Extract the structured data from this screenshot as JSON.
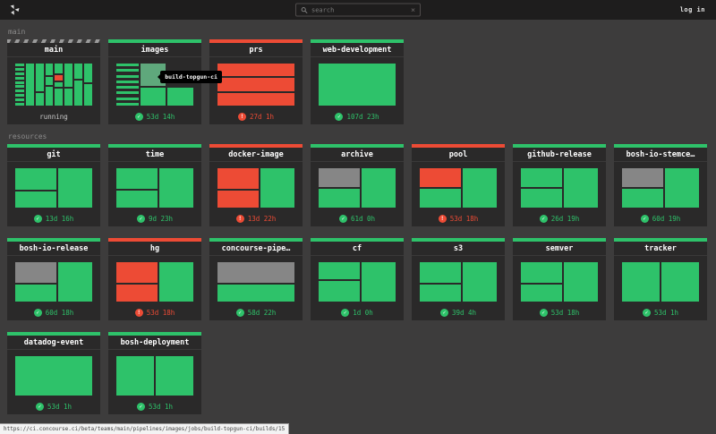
{
  "nav": {
    "search_placeholder": "search",
    "login_label": "log in"
  },
  "colors": {
    "green": "#2ec26a",
    "red": "#ed4b35",
    "gray": "#868686",
    "faded": "#5fa87c",
    "none": "transparent",
    "accent_striped": "running-stripes"
  },
  "statusbar": {
    "url": "https://ci.concourse.ci/beta/teams/main/pipelines/images/jobs/build-topgun-ci/builds/15"
  },
  "sections": [
    {
      "label": "main",
      "type": "pipelines",
      "cards": [
        {
          "title": "main",
          "bar": "striped",
          "status": {
            "icon": null,
            "text": "running",
            "color": "muted"
          },
          "preview": {
            "columns": [
              {
                "type": "stripes",
                "count": 10,
                "flex": 12,
                "color": "green"
              },
              {
                "flex": 11,
                "boxes": [
                  {
                    "color": "green",
                    "flex": 100
                  }
                ]
              },
              {
                "flex": 11,
                "boxes": [
                  {
                    "color": "green",
                    "flex": 68
                  },
                  {
                    "color": "green",
                    "flex": 30
                  }
                ]
              },
              {
                "flex": 11,
                "boxes": [
                  {
                    "color": "green",
                    "flex": 30
                  },
                  {
                    "color": "green",
                    "flex": 20
                  },
                  {
                    "color": "green",
                    "flex": 46
                  }
                ]
              },
              {
                "flex": 11,
                "boxes": [
                  {
                    "color": "green",
                    "flex": 26
                  },
                  {
                    "color": "red",
                    "flex": 13
                  },
                  {
                    "color": "green",
                    "flex": 12
                  },
                  {
                    "color": "green",
                    "flex": 43
                  }
                ]
              },
              {
                "flex": 11,
                "boxes": [
                  {
                    "color": "green",
                    "flex": 56
                  },
                  {
                    "color": "green",
                    "flex": 42
                  }
                ]
              },
              {
                "flex": 11,
                "boxes": [
                  {
                    "color": "green",
                    "flex": 36
                  },
                  {
                    "color": "green",
                    "flex": 62
                  }
                ]
              },
              {
                "flex": 11,
                "boxes": [
                  {
                    "color": "green",
                    "flex": 46
                  },
                  {
                    "color": "green",
                    "flex": 52
                  }
                ]
              }
            ]
          }
        },
        {
          "title": "images",
          "bar": "green",
          "tooltip": "build-topgun-ci",
          "status": {
            "icon": "check",
            "text": "53d 14h",
            "color": "green"
          },
          "preview": {
            "columns": [
              {
                "type": "stripes",
                "count": 8,
                "flex": 30,
                "color": "green"
              },
              {
                "flex": 35,
                "boxes": [
                  {
                    "color": "faded",
                    "flex": 55
                  },
                  {
                    "color": "green",
                    "flex": 45
                  }
                ]
              },
              {
                "flex": 35,
                "boxes": [
                  {
                    "color": "none",
                    "flex": 55
                  },
                  {
                    "color": "green",
                    "flex": 45
                  }
                ]
              }
            ]
          }
        },
        {
          "title": "prs",
          "bar": "red",
          "status": {
            "icon": "error",
            "text": "27d 1h",
            "color": "red"
          },
          "preview": {
            "columns": [
              {
                "flex": 100,
                "boxes": [
                  {
                    "color": "red",
                    "flex": 33
                  },
                  {
                    "color": "red",
                    "flex": 33
                  },
                  {
                    "color": "red",
                    "flex": 33
                  }
                ]
              }
            ]
          }
        },
        {
          "title": "web-development",
          "bar": "green",
          "status": {
            "icon": "check",
            "text": "107d 23h",
            "color": "green"
          },
          "preview": {
            "columns": [
              {
                "flex": 100,
                "boxes": [
                  {
                    "color": "green",
                    "flex": 100
                  }
                ]
              }
            ]
          }
        }
      ]
    },
    {
      "label": "resources",
      "type": "resources",
      "cards": [
        {
          "title": "git",
          "bar": "green",
          "status": {
            "icon": "check",
            "text": "13d 16h",
            "color": "green"
          },
          "preview": {
            "columns": [
              {
                "flex": 55,
                "boxes": [
                  {
                    "color": "green",
                    "flex": 58
                  },
                  {
                    "color": "green",
                    "flex": 42
                  }
                ]
              },
              {
                "flex": 45,
                "boxes": [
                  {
                    "color": "green",
                    "flex": 100
                  }
                ]
              }
            ]
          }
        },
        {
          "title": "time",
          "bar": "green",
          "status": {
            "icon": "check",
            "text": "9d 23h",
            "color": "green"
          },
          "preview": {
            "columns": [
              {
                "flex": 55,
                "boxes": [
                  {
                    "color": "green",
                    "flex": 55
                  },
                  {
                    "color": "green",
                    "flex": 45
                  }
                ]
              },
              {
                "flex": 45,
                "boxes": [
                  {
                    "color": "green",
                    "flex": 100
                  }
                ]
              }
            ]
          }
        },
        {
          "title": "docker-image",
          "bar": "red",
          "status": {
            "icon": "error",
            "text": "13d 22h",
            "color": "red"
          },
          "preview": {
            "columns": [
              {
                "flex": 55,
                "boxes": [
                  {
                    "color": "red",
                    "flex": 55
                  },
                  {
                    "color": "red",
                    "flex": 45
                  }
                ]
              },
              {
                "flex": 45,
                "boxes": [
                  {
                    "color": "green",
                    "flex": 100
                  }
                ]
              }
            ]
          }
        },
        {
          "title": "archive",
          "bar": "green",
          "status": {
            "icon": "check",
            "text": "61d 0h",
            "color": "green"
          },
          "preview": {
            "columns": [
              {
                "flex": 55,
                "boxes": [
                  {
                    "color": "gray",
                    "flex": 50
                  },
                  {
                    "color": "green",
                    "flex": 50
                  }
                ]
              },
              {
                "flex": 45,
                "boxes": [
                  {
                    "color": "green",
                    "flex": 100
                  }
                ]
              }
            ]
          }
        },
        {
          "title": "pool",
          "bar": "red",
          "status": {
            "icon": "error",
            "text": "53d 18h",
            "color": "red"
          },
          "preview": {
            "columns": [
              {
                "flex": 55,
                "boxes": [
                  {
                    "color": "red",
                    "flex": 50
                  },
                  {
                    "color": "green",
                    "flex": 50
                  }
                ]
              },
              {
                "flex": 45,
                "boxes": [
                  {
                    "color": "green",
                    "flex": 100
                  }
                ]
              }
            ]
          }
        },
        {
          "title": "github-release",
          "bar": "green",
          "status": {
            "icon": "check",
            "text": "26d 19h",
            "color": "green"
          },
          "preview": {
            "columns": [
              {
                "flex": 55,
                "boxes": [
                  {
                    "color": "green",
                    "flex": 50
                  },
                  {
                    "color": "green",
                    "flex": 50
                  }
                ]
              },
              {
                "flex": 45,
                "boxes": [
                  {
                    "color": "green",
                    "flex": 100
                  }
                ]
              }
            ]
          }
        },
        {
          "title": "bosh-io-stemce…",
          "bar": "green",
          "status": {
            "icon": "check",
            "text": "60d 19h",
            "color": "green"
          },
          "preview": {
            "columns": [
              {
                "flex": 55,
                "boxes": [
                  {
                    "color": "gray",
                    "flex": 50
                  },
                  {
                    "color": "green",
                    "flex": 50
                  }
                ]
              },
              {
                "flex": 45,
                "boxes": [
                  {
                    "color": "green",
                    "flex": 100
                  }
                ]
              }
            ]
          }
        },
        {
          "title": "bosh-io-release",
          "bar": "green",
          "status": {
            "icon": "check",
            "text": "60d 18h",
            "color": "green"
          },
          "preview": {
            "columns": [
              {
                "flex": 55,
                "boxes": [
                  {
                    "color": "gray",
                    "flex": 55
                  },
                  {
                    "color": "green",
                    "flex": 45
                  }
                ]
              },
              {
                "flex": 45,
                "boxes": [
                  {
                    "color": "green",
                    "flex": 100
                  }
                ]
              }
            ]
          }
        },
        {
          "title": "hg",
          "bar": "red",
          "status": {
            "icon": "error",
            "text": "53d 18h",
            "color": "red"
          },
          "preview": {
            "columns": [
              {
                "flex": 55,
                "boxes": [
                  {
                    "color": "red",
                    "flex": 55
                  },
                  {
                    "color": "red",
                    "flex": 45
                  }
                ]
              },
              {
                "flex": 45,
                "boxes": [
                  {
                    "color": "green",
                    "flex": 100
                  }
                ]
              }
            ]
          }
        },
        {
          "title": "concourse-pipe…",
          "bar": "green",
          "status": {
            "icon": "check",
            "text": "58d 22h",
            "color": "green"
          },
          "preview": {
            "columns": [
              {
                "flex": 100,
                "boxes": [
                  {
                    "color": "gray",
                    "flex": 55
                  },
                  {
                    "color": "green",
                    "flex": 45
                  }
                ]
              }
            ]
          }
        },
        {
          "title": "cf",
          "bar": "green",
          "status": {
            "icon": "check",
            "text": "1d 0h",
            "color": "green"
          },
          "preview": {
            "columns": [
              {
                "flex": 55,
                "boxes": [
                  {
                    "color": "green",
                    "flex": 45
                  },
                  {
                    "color": "green",
                    "flex": 55
                  }
                ]
              },
              {
                "flex": 45,
                "boxes": [
                  {
                    "color": "green",
                    "flex": 100
                  }
                ]
              }
            ]
          }
        },
        {
          "title": "s3",
          "bar": "green",
          "status": {
            "icon": "check",
            "text": "39d 4h",
            "color": "green"
          },
          "preview": {
            "columns": [
              {
                "flex": 55,
                "boxes": [
                  {
                    "color": "green",
                    "flex": 55
                  },
                  {
                    "color": "green",
                    "flex": 45
                  }
                ]
              },
              {
                "flex": 45,
                "boxes": [
                  {
                    "color": "green",
                    "flex": 100
                  }
                ]
              }
            ]
          }
        },
        {
          "title": "semver",
          "bar": "green",
          "status": {
            "icon": "check",
            "text": "53d 18h",
            "color": "green"
          },
          "preview": {
            "columns": [
              {
                "flex": 55,
                "boxes": [
                  {
                    "color": "green",
                    "flex": 55
                  },
                  {
                    "color": "green",
                    "flex": 45
                  }
                ]
              },
              {
                "flex": 45,
                "boxes": [
                  {
                    "color": "green",
                    "flex": 100
                  }
                ]
              }
            ]
          }
        },
        {
          "title": "tracker",
          "bar": "green",
          "status": {
            "icon": "check",
            "text": "53d 1h",
            "color": "green"
          },
          "preview": {
            "columns": [
              {
                "flex": 50,
                "boxes": [
                  {
                    "color": "green",
                    "flex": 100
                  }
                ]
              },
              {
                "flex": 50,
                "boxes": [
                  {
                    "color": "green",
                    "flex": 100
                  }
                ]
              }
            ]
          }
        },
        {
          "title": "datadog-event",
          "bar": "green",
          "status": {
            "icon": "check",
            "text": "53d 1h",
            "color": "green"
          },
          "preview": {
            "columns": [
              {
                "flex": 100,
                "boxes": [
                  {
                    "color": "green",
                    "flex": 100
                  }
                ]
              }
            ]
          }
        },
        {
          "title": "bosh-deployment",
          "bar": "green",
          "status": {
            "icon": "check",
            "text": "53d 1h",
            "color": "green"
          },
          "preview": {
            "columns": [
              {
                "flex": 50,
                "boxes": [
                  {
                    "color": "green",
                    "flex": 100
                  }
                ]
              },
              {
                "flex": 50,
                "boxes": [
                  {
                    "color": "green",
                    "flex": 100
                  }
                ]
              }
            ]
          }
        }
      ]
    }
  ]
}
